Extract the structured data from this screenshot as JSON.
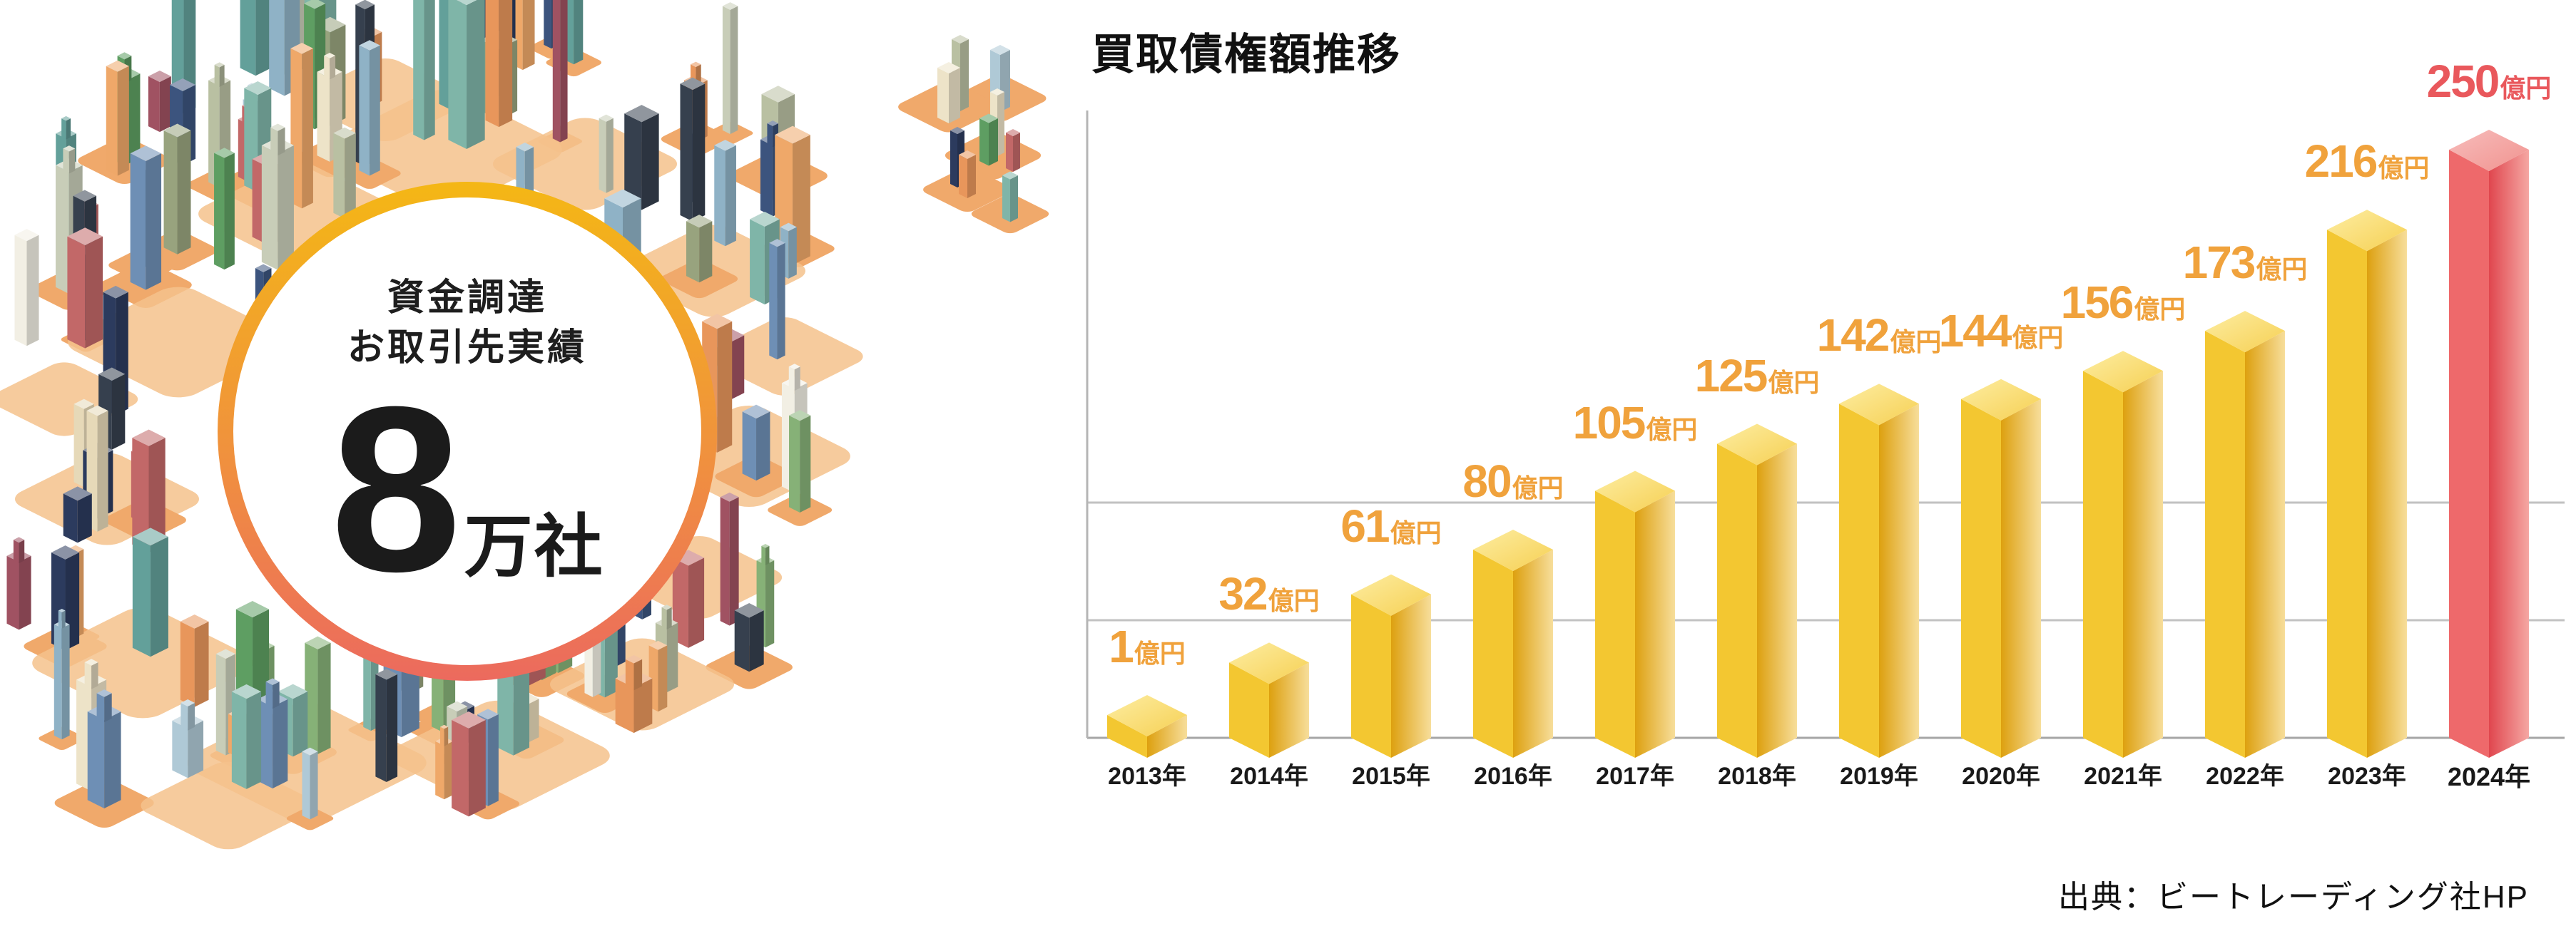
{
  "badge": {
    "line1": "資金調達",
    "line2": "お取引先実績",
    "number": "8",
    "unit": "万社"
  },
  "chart": {
    "title": "買取債権額推移",
    "source": "出典：ビートレーディング社HP"
  },
  "chart_data": {
    "type": "bar",
    "title": "買取債権額推移",
    "categories": [
      "2013年",
      "2014年",
      "2015年",
      "2016年",
      "2017年",
      "2018年",
      "2019年",
      "2020年",
      "2021年",
      "2022年",
      "2023年",
      "2024年"
    ],
    "values": [
      1,
      32,
      61,
      80,
      105,
      125,
      142,
      144,
      156,
      173,
      216,
      250
    ],
    "unit": "億円",
    "xlabel": "",
    "ylabel": "",
    "ylim": [
      0,
      250
    ],
    "gridline_values": [
      50,
      100
    ],
    "grid": "horizontal",
    "legend": "none",
    "highlight_index": 11,
    "source": "出典：ビートレーディング社HP"
  },
  "colors": {
    "label_orange": "#F0A23C",
    "label_red": "#E9585C",
    "text_dark": "#1b1b1b",
    "axis": "#b5b5b5",
    "grid": "#c2c2c2",
    "baseline": "#a6a6a6",
    "bar_yellow": {
      "top": [
        "#FDEDA2",
        "#F6D053"
      ],
      "left": "#F3C731",
      "right": [
        "#DDA00F",
        "#F7DE9B"
      ]
    },
    "bar_red": {
      "top": [
        "#F7BDBC",
        "#F1938F"
      ],
      "left": "#EE696B",
      "right": [
        "#E0464E",
        "#F5A7A3"
      ]
    },
    "ring_gradient": [
      "#F4B715",
      "#F0913E",
      "#EC6A5E"
    ],
    "tile": "#F0A96B",
    "patch": "#F5C28C",
    "building_palette": [
      "#EDE3C8",
      "#E6D9B8",
      "#B9C0A2",
      "#98A37E",
      "#AFC9D6",
      "#8FB2C6",
      "#6E8FB5",
      "#3C547E",
      "#2C3B5E",
      "#63A09A",
      "#7FB5A8",
      "#5E9E62",
      "#86B177",
      "#E8965B",
      "#EFA869",
      "#C26868",
      "#A05262",
      "#36404E",
      "#F2EFE4",
      "#C8CDB8"
    ]
  }
}
